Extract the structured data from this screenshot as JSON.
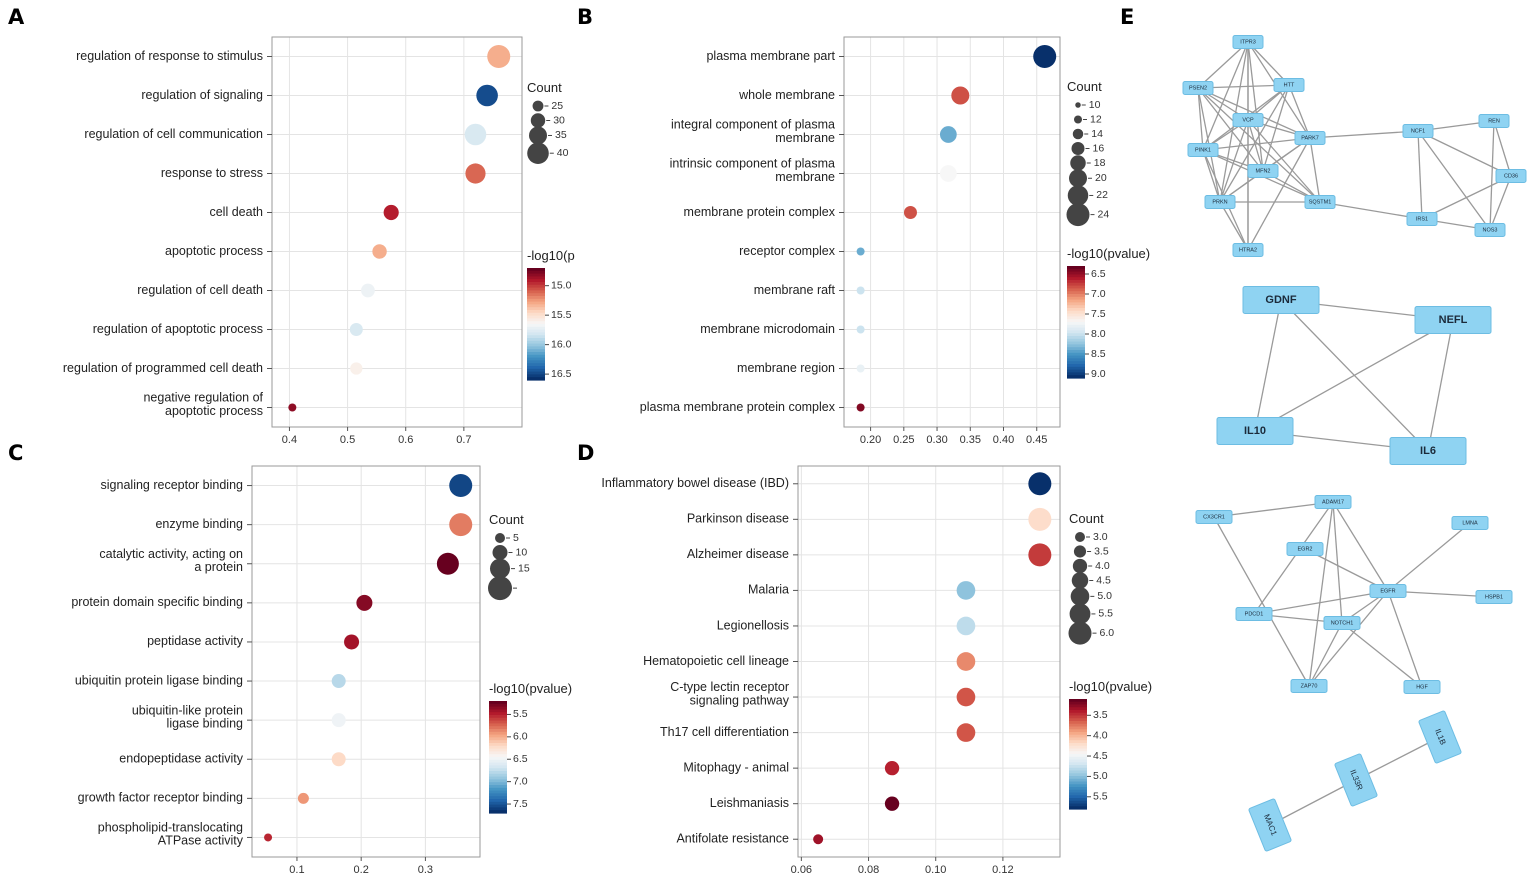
{
  "panel_letters": [
    "A",
    "B",
    "C",
    "D",
    "E"
  ],
  "colors": {
    "scale": [
      "#08306b",
      "#2166ac",
      "#4393c3",
      "#92c5de",
      "#d1e5f0",
      "#f7f7f7",
      "#fddbc7",
      "#f4a582",
      "#d6604d",
      "#b2182b",
      "#67001f"
    ],
    "node_fill": "#8fd3f2",
    "edge": "#9a9a9a"
  },
  "chart_data": [
    {
      "id": "A",
      "type": "scatter",
      "categories": [
        "regulation of response to stimulus",
        "regulation of signaling",
        "regulation of cell communication",
        "response to stress",
        "cell death",
        "apoptotic process",
        "regulation of cell death",
        "regulation of apoptotic process",
        "regulation of programmed cell death",
        "negative regulation of apoptotic process"
      ],
      "x": [
        0.76,
        0.74,
        0.72,
        0.72,
        0.575,
        0.555,
        0.535,
        0.515,
        0.515,
        0.405
      ],
      "count": [
        42,
        40,
        40,
        38,
        31,
        30,
        29,
        28,
        27,
        21
      ],
      "neglog10p": [
        15.3,
        16.5,
        15.8,
        15.1,
        14.9,
        15.3,
        15.7,
        15.8,
        15.6,
        14.8
      ],
      "xlim": [
        0.37,
        0.8
      ],
      "xticks": [
        0.4,
        0.5,
        0.6,
        0.7
      ],
      "xtick_labels": [
        "0.4",
        "0.5",
        "0.6",
        "0.7"
      ],
      "size_legend": {
        "title": "Count",
        "values": [
          25,
          30,
          35,
          40
        ],
        "labels": [
          "25",
          "30",
          "35",
          "40"
        ]
      },
      "color_legend": {
        "title": "-log10(p",
        "range": [
          14.7,
          16.6
        ],
        "labels": [
          "15.0",
          "15.5",
          "16.0",
          "16.5"
        ],
        "label_values": [
          15.0,
          15.5,
          16.0,
          16.5
        ]
      }
    },
    {
      "id": "B",
      "type": "scatter",
      "categories": [
        "plasma membrane part",
        "whole membrane",
        "integral component of plasma membrane",
        "intrinsic component of plasma membrane",
        "membrane protein complex",
        "receptor complex",
        "membrane raft",
        "membrane microdomain",
        "membrane region",
        "plasma membrane protein complex"
      ],
      "x": [
        0.462,
        0.335,
        0.317,
        0.317,
        0.26,
        0.185,
        0.185,
        0.185,
        0.185,
        0.185
      ],
      "count": [
        24,
        20,
        19,
        19,
        16,
        12,
        12,
        12,
        12,
        12
      ],
      "neglog10p": [
        9.1,
        6.8,
        8.4,
        7.7,
        6.8,
        8.4,
        8.0,
        8.0,
        7.8,
        6.4
      ],
      "xlim": [
        0.16,
        0.485
      ],
      "xticks": [
        0.2,
        0.25,
        0.3,
        0.35,
        0.4,
        0.45
      ],
      "xtick_labels": [
        "0.20",
        "0.25",
        "0.30",
        "0.35",
        "0.40",
        "0.45"
      ],
      "size_legend": {
        "title": "Count",
        "values": [
          10,
          12,
          14,
          16,
          18,
          20,
          22,
          24
        ],
        "labels": [
          "10",
          "12",
          "14",
          "16",
          "18",
          "20",
          "22",
          "24"
        ]
      },
      "color_legend": {
        "title": "-log10(pvalue)",
        "range": [
          6.3,
          9.1
        ],
        "labels": [
          "6.5",
          "7.0",
          "7.5",
          "8.0",
          "8.5",
          "9.0"
        ],
        "label_values": [
          6.5,
          7.0,
          7.5,
          8.0,
          8.5,
          9.0
        ]
      }
    },
    {
      "id": "C",
      "type": "scatter",
      "categories": [
        "signaling receptor binding",
        "enzyme binding",
        "catalytic activity, acting on a protein",
        "protein domain specific binding",
        "peptidase activity",
        "ubiquitin protein ligase binding",
        "ubiquitin-like protein ligase binding",
        "endopeptidase activity",
        "growth factor receptor binding",
        "phospholipid-translocating ATPase activity"
      ],
      "x": [
        0.355,
        0.355,
        0.335,
        0.205,
        0.185,
        0.165,
        0.165,
        0.165,
        0.11,
        0.055
      ],
      "count": [
        18,
        18,
        17,
        11,
        10,
        9,
        9,
        9,
        6,
        3
      ],
      "neglog10p": [
        7.6,
        5.8,
        5.2,
        5.3,
        5.4,
        6.8,
        6.5,
        6.2,
        5.9,
        5.5
      ],
      "xlim": [
        0.03,
        0.385
      ],
      "xticks": [
        0.1,
        0.2,
        0.3
      ],
      "xtick_labels": [
        "0.1",
        "0.2",
        "0.3"
      ],
      "size_legend": {
        "title": "Count",
        "values": [
          5,
          10,
          15,
          19
        ],
        "labels": [
          "5",
          "10",
          "15",
          ""
        ]
      },
      "color_legend": {
        "title": "-log10(pvalue)",
        "range": [
          5.2,
          7.7
        ],
        "labels": [
          "5.5",
          "6.0",
          "6.5",
          "7.0",
          "7.5"
        ],
        "label_values": [
          5.5,
          6.0,
          6.5,
          7.0,
          7.5
        ]
      }
    },
    {
      "id": "D",
      "type": "scatter",
      "categories": [
        "Inflammatory bowel disease (IBD)",
        "Parkinson disease",
        "Alzheimer disease",
        "Malaria",
        "Legionellosis",
        "Hematopoietic cell lineage",
        "C-type lectin receptor signaling pathway",
        "Th17 cell differentiation",
        "Mitophagy - animal",
        "Leishmaniasis",
        "Antifolate resistance"
      ],
      "x": [
        0.131,
        0.131,
        0.131,
        0.109,
        0.109,
        0.109,
        0.109,
        0.109,
        0.087,
        0.087,
        0.065
      ],
      "count": [
        6,
        6,
        6,
        5,
        5,
        5,
        5,
        5,
        4,
        4,
        3
      ],
      "neglog10p": [
        5.8,
        4.2,
        3.5,
        5.0,
        4.8,
        3.8,
        3.6,
        3.6,
        3.4,
        3.1,
        3.3
      ],
      "xlim": [
        0.059,
        0.137
      ],
      "xticks": [
        0.06,
        0.08,
        0.1,
        0.12
      ],
      "xtick_labels": [
        "0.06",
        "0.08",
        "0.10",
        "0.12"
      ],
      "size_legend": {
        "title": "Count",
        "values": [
          3.0,
          3.5,
          4.0,
          4.5,
          5.0,
          5.5,
          6.0
        ],
        "labels": [
          "3.0",
          "3.5",
          "4.0",
          "4.5",
          "5.0",
          "5.5",
          "6.0"
        ]
      },
      "color_legend": {
        "title": "-log10(pvalue)",
        "range": [
          3.1,
          5.8
        ],
        "labels": [
          "3.5",
          "4.0",
          "4.5",
          "5.0",
          "5.5"
        ],
        "label_values": [
          3.5,
          4.0,
          4.5,
          5.0,
          5.5
        ]
      }
    }
  ],
  "networks": {
    "net1": {
      "nodes": [
        "ITPR3",
        "PSEN2",
        "HTT",
        "VCP",
        "PARK7",
        "PINK1",
        "MFN2",
        "PRKN",
        "SQSTM1",
        "HTRA2",
        "NCF1",
        "REN",
        "CD36",
        "IRS1",
        "NOS3"
      ],
      "edges": [
        [
          "ITPR3",
          "PSEN2"
        ],
        [
          "ITPR3",
          "HTT"
        ],
        [
          "ITPR3",
          "VCP"
        ],
        [
          "ITPR3",
          "PINK1"
        ],
        [
          "ITPR3",
          "PRKN"
        ],
        [
          "ITPR3",
          "PARK7"
        ],
        [
          "ITPR3",
          "MFN2"
        ],
        [
          "ITPR3",
          "HTRA2"
        ],
        [
          "PSEN2",
          "HTT"
        ],
        [
          "PSEN2",
          "VCP"
        ],
        [
          "PSEN2",
          "PINK1"
        ],
        [
          "PSEN2",
          "PRKN"
        ],
        [
          "PSEN2",
          "MFN2"
        ],
        [
          "PSEN2",
          "PARK7"
        ],
        [
          "PSEN2",
          "SQSTM1"
        ],
        [
          "HTT",
          "VCP"
        ],
        [
          "HTT",
          "PARK7"
        ],
        [
          "HTT",
          "PINK1"
        ],
        [
          "HTT",
          "MFN2"
        ],
        [
          "HTT",
          "PRKN"
        ],
        [
          "VCP",
          "PARK7"
        ],
        [
          "VCP",
          "PINK1"
        ],
        [
          "VCP",
          "MFN2"
        ],
        [
          "VCP",
          "PRKN"
        ],
        [
          "VCP",
          "SQSTM1"
        ],
        [
          "VCP",
          "HTRA2"
        ],
        [
          "PARK7",
          "PINK1"
        ],
        [
          "PARK7",
          "MFN2"
        ],
        [
          "PARK7",
          "PRKN"
        ],
        [
          "PARK7",
          "SQSTM1"
        ],
        [
          "PARK7",
          "HTRA2"
        ],
        [
          "PARK7",
          "NCF1"
        ],
        [
          "PINK1",
          "MFN2"
        ],
        [
          "PINK1",
          "PRKN"
        ],
        [
          "PINK1",
          "SQSTM1"
        ],
        [
          "PINK1",
          "HTRA2"
        ],
        [
          "MFN2",
          "PRKN"
        ],
        [
          "MFN2",
          "SQSTM1"
        ],
        [
          "PRKN",
          "SQSTM1"
        ],
        [
          "PRKN",
          "HTRA2"
        ],
        [
          "SQSTM1",
          "IRS1"
        ],
        [
          "NCF1",
          "REN"
        ],
        [
          "NCF1",
          "CD36"
        ],
        [
          "NCF1",
          "NOS3"
        ],
        [
          "NCF1",
          "IRS1"
        ],
        [
          "REN",
          "CD36"
        ],
        [
          "REN",
          "NOS3"
        ],
        [
          "CD36",
          "IRS1"
        ],
        [
          "CD36",
          "NOS3"
        ],
        [
          "IRS1",
          "NOS3"
        ]
      ]
    },
    "net2": {
      "nodes": [
        "GDNF",
        "NEFL",
        "IL10",
        "IL6"
      ],
      "edges": [
        [
          "GDNF",
          "NEFL"
        ],
        [
          "GDNF",
          "IL10"
        ],
        [
          "GDNF",
          "IL6"
        ],
        [
          "NEFL",
          "IL10"
        ],
        [
          "NEFL",
          "IL6"
        ],
        [
          "IL10",
          "IL6"
        ]
      ]
    },
    "net3": {
      "nodes": [
        "CX3CR1",
        "ADAM17",
        "LMNA",
        "EGR2",
        "EGFR",
        "HSPB1",
        "PDCD1",
        "NOTCH1",
        "ZAP70",
        "HGF"
      ],
      "edges": [
        [
          "CX3CR1",
          "ADAM17"
        ],
        [
          "CX3CR1",
          "ZAP70"
        ],
        [
          "ADAM17",
          "PDCD1"
        ],
        [
          "ADAM17",
          "EGFR"
        ],
        [
          "ADAM17",
          "NOTCH1"
        ],
        [
          "ADAM17",
          "ZAP70"
        ],
        [
          "EGR2",
          "EGFR"
        ],
        [
          "LMNA",
          "EGFR"
        ],
        [
          "EGFR",
          "HSPB1"
        ],
        [
          "EGFR",
          "PDCD1"
        ],
        [
          "EGFR",
          "NOTCH1"
        ],
        [
          "EGFR",
          "ZAP70"
        ],
        [
          "EGFR",
          "HGF"
        ],
        [
          "NOTCH1",
          "PDCD1"
        ],
        [
          "NOTCH1",
          "ZAP70"
        ],
        [
          "NOTCH1",
          "HGF"
        ]
      ]
    },
    "net4": {
      "nodes": [
        "IL1B",
        "IL33R",
        "MAC1"
      ],
      "edges": [
        [
          "IL1B",
          "IL33R"
        ],
        [
          "IL33R",
          "MAC1"
        ]
      ]
    }
  }
}
